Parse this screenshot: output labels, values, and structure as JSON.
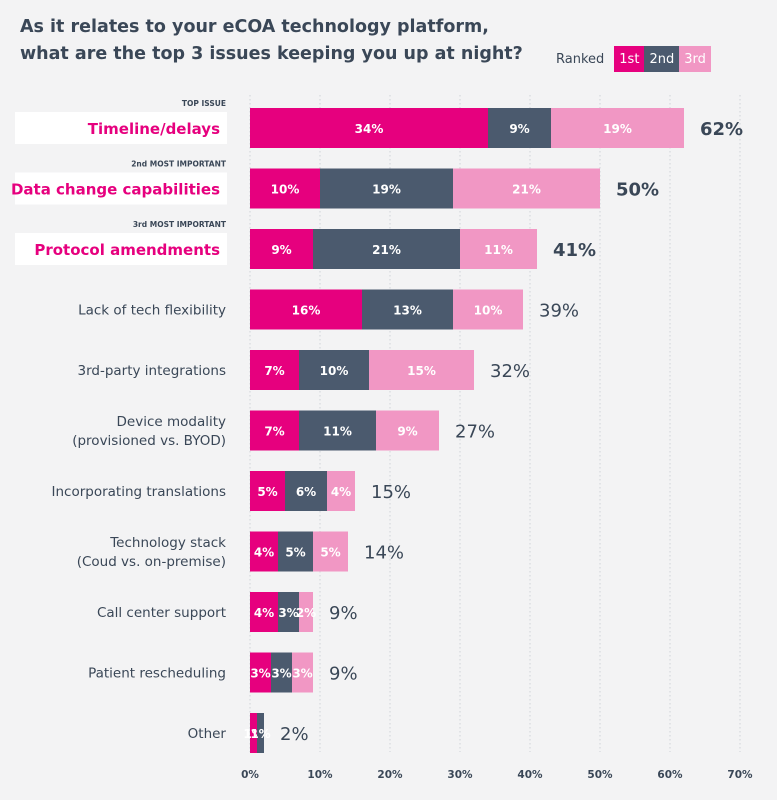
{
  "title_lines": [
    "As it relates to your eCOA technology platform,",
    "what are the top 3 issues keeping you up at night?"
  ],
  "legend": {
    "label": "Ranked",
    "items": [
      {
        "label": "1st",
        "color": "#e6007e"
      },
      {
        "label": "2nd",
        "color": "#4b5a6e"
      },
      {
        "label": "3rd",
        "color": "#f197c4"
      }
    ]
  },
  "colors": {
    "first": "#e6007e",
    "second": "#4b5a6e",
    "third": "#f197c4",
    "text": "#3a4757",
    "highlight_text": "#e6007e",
    "grid": "#cfd3d8"
  },
  "chart_data": {
    "type": "bar",
    "orientation": "horizontal",
    "stacked": true,
    "xlim": [
      0,
      70
    ],
    "x_ticks": [
      "0%",
      "10%",
      "20%",
      "30%",
      "40%",
      "50%",
      "60%",
      "70%"
    ],
    "grid": true,
    "legend_position": "top-right",
    "series": [
      {
        "name": "1st"
      },
      {
        "name": "2nd"
      },
      {
        "name": "3rd"
      }
    ],
    "rows": [
      {
        "label": [
          "Timeline/delays"
        ],
        "tag": "TOP ISSUE",
        "highlight": true,
        "values": [
          34,
          9,
          19
        ],
        "value_labels": [
          "34%",
          "9%",
          "19%"
        ],
        "total": "62%"
      },
      {
        "label": [
          "Data change capabilities"
        ],
        "tag": "2nd MOST IMPORTANT",
        "highlight": true,
        "values": [
          10,
          19,
          21
        ],
        "value_labels": [
          "10%",
          "19%",
          "21%"
        ],
        "total": "50%"
      },
      {
        "label": [
          "Protocol amendments"
        ],
        "tag": "3rd MOST IMPORTANT",
        "highlight": true,
        "values": [
          9,
          21,
          11
        ],
        "value_labels": [
          "9%",
          "21%",
          "11%"
        ],
        "total": "41%"
      },
      {
        "label": [
          "Lack of tech flexibility"
        ],
        "tag": "",
        "highlight": false,
        "values": [
          16,
          13,
          10
        ],
        "value_labels": [
          "16%",
          "13%",
          "10%"
        ],
        "total": "39%"
      },
      {
        "label": [
          "3rd-party integrations"
        ],
        "tag": "",
        "highlight": false,
        "values": [
          7,
          10,
          15
        ],
        "value_labels": [
          "7%",
          "10%",
          "15%"
        ],
        "total": "32%"
      },
      {
        "label": [
          "Device modality",
          "(provisioned vs. BYOD)"
        ],
        "tag": "",
        "highlight": false,
        "values": [
          7,
          11,
          9
        ],
        "value_labels": [
          "7%",
          "11%",
          "9%"
        ],
        "total": "27%"
      },
      {
        "label": [
          "Incorporating translations"
        ],
        "tag": "",
        "highlight": false,
        "values": [
          5,
          6,
          4
        ],
        "value_labels": [
          "5%",
          "6%",
          "4%"
        ],
        "total": "15%"
      },
      {
        "label": [
          "Technology stack",
          "(Coud vs. on-premise)"
        ],
        "tag": "",
        "highlight": false,
        "values": [
          4,
          5,
          5
        ],
        "value_labels": [
          "4%",
          "5%",
          "5%"
        ],
        "total": "14%"
      },
      {
        "label": [
          "Call center support"
        ],
        "tag": "",
        "highlight": false,
        "values": [
          4,
          3,
          2
        ],
        "value_labels": [
          "4%",
          "3%",
          "2%"
        ],
        "total": "9%"
      },
      {
        "label": [
          "Patient rescheduling"
        ],
        "tag": "",
        "highlight": false,
        "values": [
          3,
          3,
          3
        ],
        "value_labels": [
          "3%",
          "3%",
          "3%"
        ],
        "total": "9%"
      },
      {
        "label": [
          "Other"
        ],
        "tag": "",
        "highlight": false,
        "values": [
          1,
          1,
          0
        ],
        "value_labels": [
          "1%",
          "1%",
          ""
        ],
        "total": "2%"
      }
    ]
  }
}
